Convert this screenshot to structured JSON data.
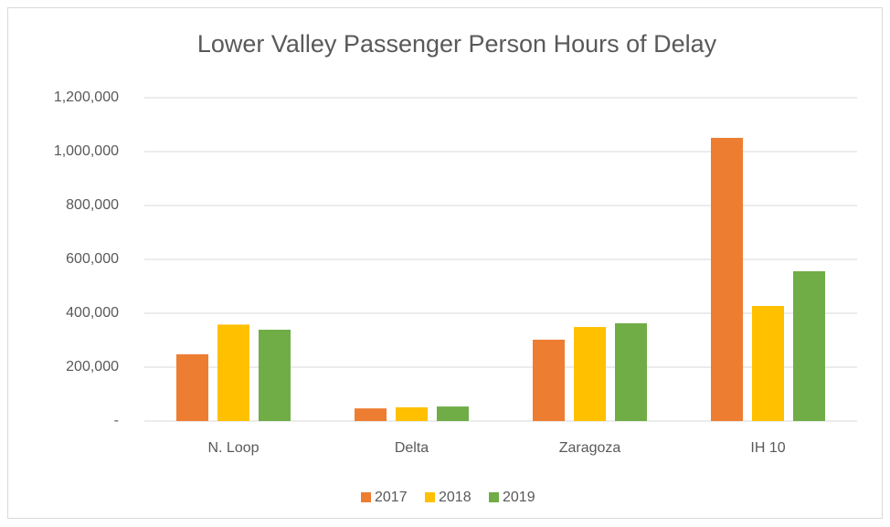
{
  "chart_data": {
    "type": "bar",
    "title": "Lower Valley Passenger Person Hours of Delay",
    "categories": [
      "N. Loop",
      "Delta",
      "Zaragoza",
      "IH 10"
    ],
    "series": [
      {
        "name": "2017",
        "color": "#ed7d31",
        "values": [
          248000,
          47000,
          302000,
          1051000
        ]
      },
      {
        "name": "2018",
        "color": "#ffc000",
        "values": [
          358000,
          51000,
          349000,
          427000
        ]
      },
      {
        "name": "2019",
        "color": "#70ad47",
        "values": [
          339000,
          54000,
          363000,
          556000
        ]
      }
    ],
    "ylim": [
      0,
      1200000
    ],
    "yticks": [
      {
        "value": 0,
        "label": "-"
      },
      {
        "value": 200000,
        "label": "200,000"
      },
      {
        "value": 400000,
        "label": "400,000"
      },
      {
        "value": 600000,
        "label": "600,000"
      },
      {
        "value": 800000,
        "label": "800,000"
      },
      {
        "value": 1000000,
        "label": "1,000,000"
      },
      {
        "value": 1200000,
        "label": "1,200,000"
      }
    ],
    "grid": true,
    "legend": "bottom"
  }
}
